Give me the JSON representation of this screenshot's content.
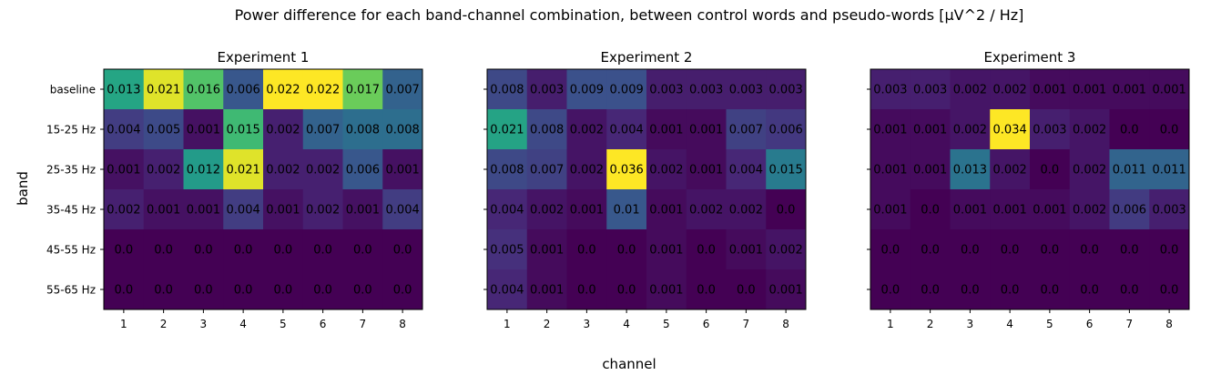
{
  "figure": {
    "suptitle": "Power difference for each band-channel combination, between control words and pseudo-words [µV^2 / Hz]",
    "xlabel": "channel",
    "ylabel": "band"
  },
  "chart_data": [
    {
      "type": "heatmap",
      "title": "Experiment 1",
      "colormap": "viridis",
      "x_categories": [
        "1",
        "2",
        "3",
        "4",
        "5",
        "6",
        "7",
        "8"
      ],
      "y_categories": [
        "baseline",
        "15-25 Hz",
        "25-35 Hz",
        "35-45 Hz",
        "45-55 Hz",
        "55-65 Hz"
      ],
      "y_tick_labels_shown": true,
      "values": [
        [
          0.013,
          0.021,
          0.016,
          0.006,
          0.022,
          0.022,
          0.017,
          0.007
        ],
        [
          0.004,
          0.005,
          0.001,
          0.015,
          0.002,
          0.007,
          0.008,
          0.008
        ],
        [
          0.001,
          0.002,
          0.012,
          0.021,
          0.002,
          0.002,
          0.006,
          0.001
        ],
        [
          0.002,
          0.001,
          0.001,
          0.004,
          0.001,
          0.002,
          0.001,
          0.004
        ],
        [
          0.0,
          0.0,
          0.0,
          0.0,
          0.0,
          0.0,
          0.0,
          0.0
        ],
        [
          0.0,
          0.0,
          0.0,
          0.0,
          0.0,
          0.0,
          0.0,
          0.0
        ]
      ],
      "labels": [
        [
          "0.013",
          "0.021",
          "0.016",
          "0.006",
          "0.022",
          "0.022",
          "0.017",
          "0.007"
        ],
        [
          "0.004",
          "0.005",
          "0.001",
          "0.015",
          "0.002",
          "0.007",
          "0.008",
          "0.008"
        ],
        [
          "0.001",
          "0.002",
          "0.012",
          "0.021",
          "0.002",
          "0.002",
          "0.006",
          "0.001"
        ],
        [
          "0.002",
          "0.001",
          "0.001",
          "0.004",
          "0.001",
          "0.002",
          "0.001",
          "0.004"
        ],
        [
          "0.0",
          "0.0",
          "0.0",
          "0.0",
          "0.0",
          "0.0",
          "0.0",
          "0.0"
        ],
        [
          "0.0",
          "0.0",
          "0.0",
          "0.0",
          "0.0",
          "0.0",
          "0.0",
          "0.0"
        ]
      ]
    },
    {
      "type": "heatmap",
      "title": "Experiment 2",
      "colormap": "viridis",
      "x_categories": [
        "1",
        "2",
        "3",
        "4",
        "5",
        "6",
        "7",
        "8"
      ],
      "y_categories": [
        "baseline",
        "15-25 Hz",
        "25-35 Hz",
        "35-45 Hz",
        "45-55 Hz",
        "55-65 Hz"
      ],
      "y_tick_labels_shown": false,
      "values": [
        [
          0.008,
          0.003,
          0.009,
          0.009,
          0.003,
          0.003,
          0.003,
          0.003
        ],
        [
          0.021,
          0.008,
          0.002,
          0.004,
          0.001,
          0.001,
          0.007,
          0.006
        ],
        [
          0.008,
          0.007,
          0.002,
          0.036,
          0.002,
          0.001,
          0.004,
          0.015
        ],
        [
          0.004,
          0.002,
          0.001,
          0.01,
          0.001,
          0.002,
          0.002,
          0.0
        ],
        [
          0.005,
          0.001,
          0.0,
          0.0,
          0.001,
          0.0,
          0.001,
          0.002
        ],
        [
          0.004,
          0.001,
          0.0,
          0.0,
          0.001,
          0.0,
          0.0,
          0.001
        ]
      ],
      "labels": [
        [
          "0.008",
          "0.003",
          "0.009",
          "0.009",
          "0.003",
          "0.003",
          "0.003",
          "0.003"
        ],
        [
          "0.021",
          "0.008",
          "0.002",
          "0.004",
          "0.001",
          "0.001",
          "0.007",
          "0.006"
        ],
        [
          "0.008",
          "0.007",
          "0.002",
          "0.036",
          "0.002",
          "0.001",
          "0.004",
          "0.015"
        ],
        [
          "0.004",
          "0.002",
          "0.001",
          "0.01",
          "0.001",
          "0.002",
          "0.002",
          "0.0"
        ],
        [
          "0.005",
          "0.001",
          "0.0",
          "0.0",
          "0.001",
          "0.0",
          "0.001",
          "0.002"
        ],
        [
          "0.004",
          "0.001",
          "0.0",
          "0.0",
          "0.001",
          "0.0",
          "0.0",
          "0.001"
        ]
      ]
    },
    {
      "type": "heatmap",
      "title": "Experiment 3",
      "colormap": "viridis",
      "x_categories": [
        "1",
        "2",
        "3",
        "4",
        "5",
        "6",
        "7",
        "8"
      ],
      "y_categories": [
        "baseline",
        "15-25 Hz",
        "25-35 Hz",
        "35-45 Hz",
        "45-55 Hz",
        "55-65 Hz"
      ],
      "y_tick_labels_shown": false,
      "values": [
        [
          0.003,
          0.003,
          0.002,
          0.002,
          0.001,
          0.001,
          0.001,
          0.001
        ],
        [
          0.001,
          0.001,
          0.002,
          0.034,
          0.003,
          0.002,
          0.0,
          0.0
        ],
        [
          0.001,
          0.001,
          0.013,
          0.002,
          0.0,
          0.002,
          0.011,
          0.011
        ],
        [
          0.001,
          0.0,
          0.001,
          0.001,
          0.001,
          0.002,
          0.006,
          0.003
        ],
        [
          0.0,
          0.0,
          0.0,
          0.0,
          0.0,
          0.0,
          0.0,
          0.0
        ],
        [
          0.0,
          0.0,
          0.0,
          0.0,
          0.0,
          0.0,
          0.0,
          0.0
        ]
      ],
      "labels": [
        [
          "0.003",
          "0.003",
          "0.002",
          "0.002",
          "0.001",
          "0.001",
          "0.001",
          "0.001"
        ],
        [
          "0.001",
          "0.001",
          "0.002",
          "0.034",
          "0.003",
          "0.002",
          "0.0",
          "0.0"
        ],
        [
          "0.001",
          "0.001",
          "0.013",
          "0.002",
          "0.0",
          "0.002",
          "0.011",
          "0.011"
        ],
        [
          "0.001",
          "0.0",
          "0.001",
          "0.001",
          "0.001",
          "0.002",
          "0.006",
          "0.003"
        ],
        [
          "0.0",
          "0.0",
          "0.0",
          "0.0",
          "0.0",
          "0.0",
          "0.0",
          "0.0"
        ],
        [
          "0.0",
          "0.0",
          "0.0",
          "0.0",
          "0.0",
          "0.0",
          "0.0",
          "0.0"
        ]
      ]
    }
  ]
}
